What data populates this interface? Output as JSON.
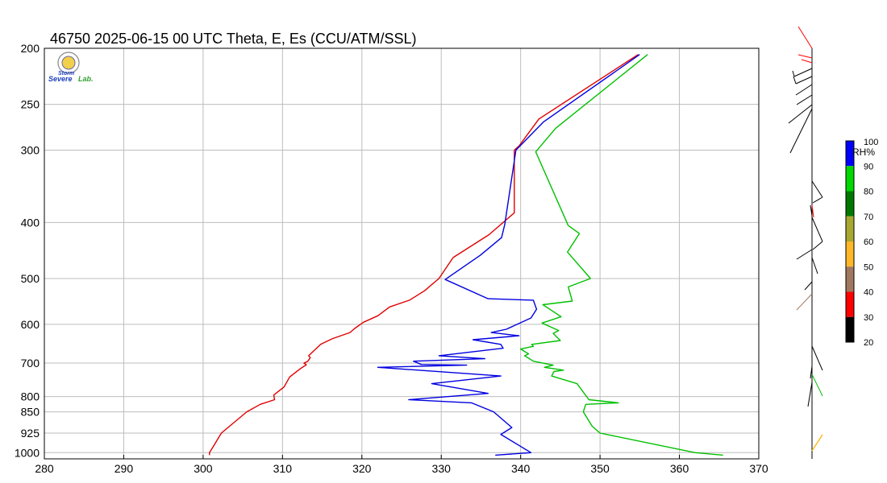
{
  "chart_data": {
    "type": "line",
    "title": "46750  2025-06-15 00 UTC  Theta, E, Es (CCU/ATM/SSL)",
    "xlabel": "",
    "ylabel": "",
    "xlim": [
      280,
      370
    ],
    "ylim": [
      1025,
      200
    ],
    "y_scale": "log",
    "grid": true,
    "x_ticks": [
      280,
      290,
      300,
      310,
      320,
      330,
      340,
      350,
      360,
      370
    ],
    "y_ticks": [
      200,
      250,
      300,
      400,
      500,
      600,
      700,
      800,
      850,
      925,
      1000
    ],
    "series": [
      {
        "color": "#e00000",
        "points": [
          [
            300.8,
            1010
          ],
          [
            300.8,
            1000
          ],
          [
            301.2,
            980
          ],
          [
            302.3,
            925
          ],
          [
            305.5,
            850
          ],
          [
            307.2,
            825
          ],
          [
            309,
            810
          ],
          [
            308.9,
            795
          ],
          [
            310.2,
            770
          ],
          [
            310.9,
            740
          ],
          [
            312.3,
            715
          ],
          [
            313,
            705
          ],
          [
            312.7,
            700
          ],
          [
            313.2,
            695
          ],
          [
            313.5,
            685
          ],
          [
            313.3,
            680
          ],
          [
            314.8,
            650
          ],
          [
            316.3,
            635
          ],
          [
            318.5,
            620
          ],
          [
            319.1,
            610
          ],
          [
            320.2,
            595
          ],
          [
            322,
            580
          ],
          [
            323.5,
            560
          ],
          [
            326,
            545
          ],
          [
            327.9,
            525
          ],
          [
            329.7,
            500
          ],
          [
            331.5,
            460
          ],
          [
            336,
            420
          ],
          [
            339.2,
            385
          ],
          [
            339.2,
            300
          ],
          [
            339.8,
            295
          ],
          [
            342.3,
            265
          ],
          [
            354.8,
            205
          ]
        ]
      },
      {
        "color": "#0000e0",
        "points": [
          [
            336.8,
            1010
          ],
          [
            341.3,
            1000
          ],
          [
            337.5,
            930
          ],
          [
            338.9,
            905
          ],
          [
            336.6,
            850
          ],
          [
            333.8,
            820
          ],
          [
            325.9,
            810
          ],
          [
            335.9,
            790
          ],
          [
            328.8,
            760
          ],
          [
            337.5,
            737
          ],
          [
            322,
            712
          ],
          [
            333.2,
            706
          ],
          [
            327.5,
            704
          ],
          [
            326.5,
            695
          ],
          [
            335.5,
            688
          ],
          [
            329.7,
            680
          ],
          [
            337.8,
            660
          ],
          [
            337.5,
            650
          ],
          [
            334,
            638
          ],
          [
            339.8,
            628
          ],
          [
            336.3,
            620
          ],
          [
            338.2,
            612
          ],
          [
            341.3,
            585
          ],
          [
            342,
            565
          ],
          [
            341.6,
            545
          ],
          [
            335.9,
            542
          ],
          [
            330.5,
            502
          ],
          [
            334.9,
            456
          ],
          [
            337.6,
            425
          ],
          [
            338,
            403
          ],
          [
            339.4,
            300
          ],
          [
            342.9,
            268
          ],
          [
            355,
            205
          ]
        ]
      },
      {
        "color": "#00c000",
        "points": [
          [
            365.5,
            1010
          ],
          [
            362,
            1000
          ],
          [
            350,
            925
          ],
          [
            349,
            900
          ],
          [
            347.9,
            850
          ],
          [
            348.2,
            825
          ],
          [
            352.3,
            820
          ],
          [
            348.6,
            810
          ],
          [
            347.1,
            760
          ],
          [
            343.9,
            737
          ],
          [
            344.2,
            724
          ],
          [
            345.4,
            720
          ],
          [
            343,
            712
          ],
          [
            344.1,
            706
          ],
          [
            341.6,
            695
          ],
          [
            340.5,
            680
          ],
          [
            341,
            675
          ],
          [
            340,
            662
          ],
          [
            341.6,
            655
          ],
          [
            341.4,
            650
          ],
          [
            345,
            640
          ],
          [
            344.1,
            622
          ],
          [
            344.8,
            615
          ],
          [
            342.7,
            597
          ],
          [
            345.1,
            582
          ],
          [
            342.8,
            555
          ],
          [
            346.5,
            547
          ],
          [
            346,
            517
          ],
          [
            348.8,
            500
          ],
          [
            345.9,
            450
          ],
          [
            347.4,
            418
          ],
          [
            346,
            405
          ],
          [
            341.9,
            302
          ],
          [
            344.4,
            275
          ],
          [
            356,
            205
          ]
        ]
      }
    ],
    "colorbar": {
      "title": "RH%",
      "ticks": [
        "100",
        "90",
        "80",
        "70",
        "60",
        "50",
        "40",
        "30",
        "20"
      ],
      "colors": [
        "#0000ff",
        "#00d800",
        "#007800",
        "#a8a830",
        "#ffb828",
        "#a07860",
        "#ff0000",
        "#000000"
      ]
    },
    "logo": {
      "line1": "Severe",
      "line2": "Storm",
      "line3": "Lab."
    }
  }
}
